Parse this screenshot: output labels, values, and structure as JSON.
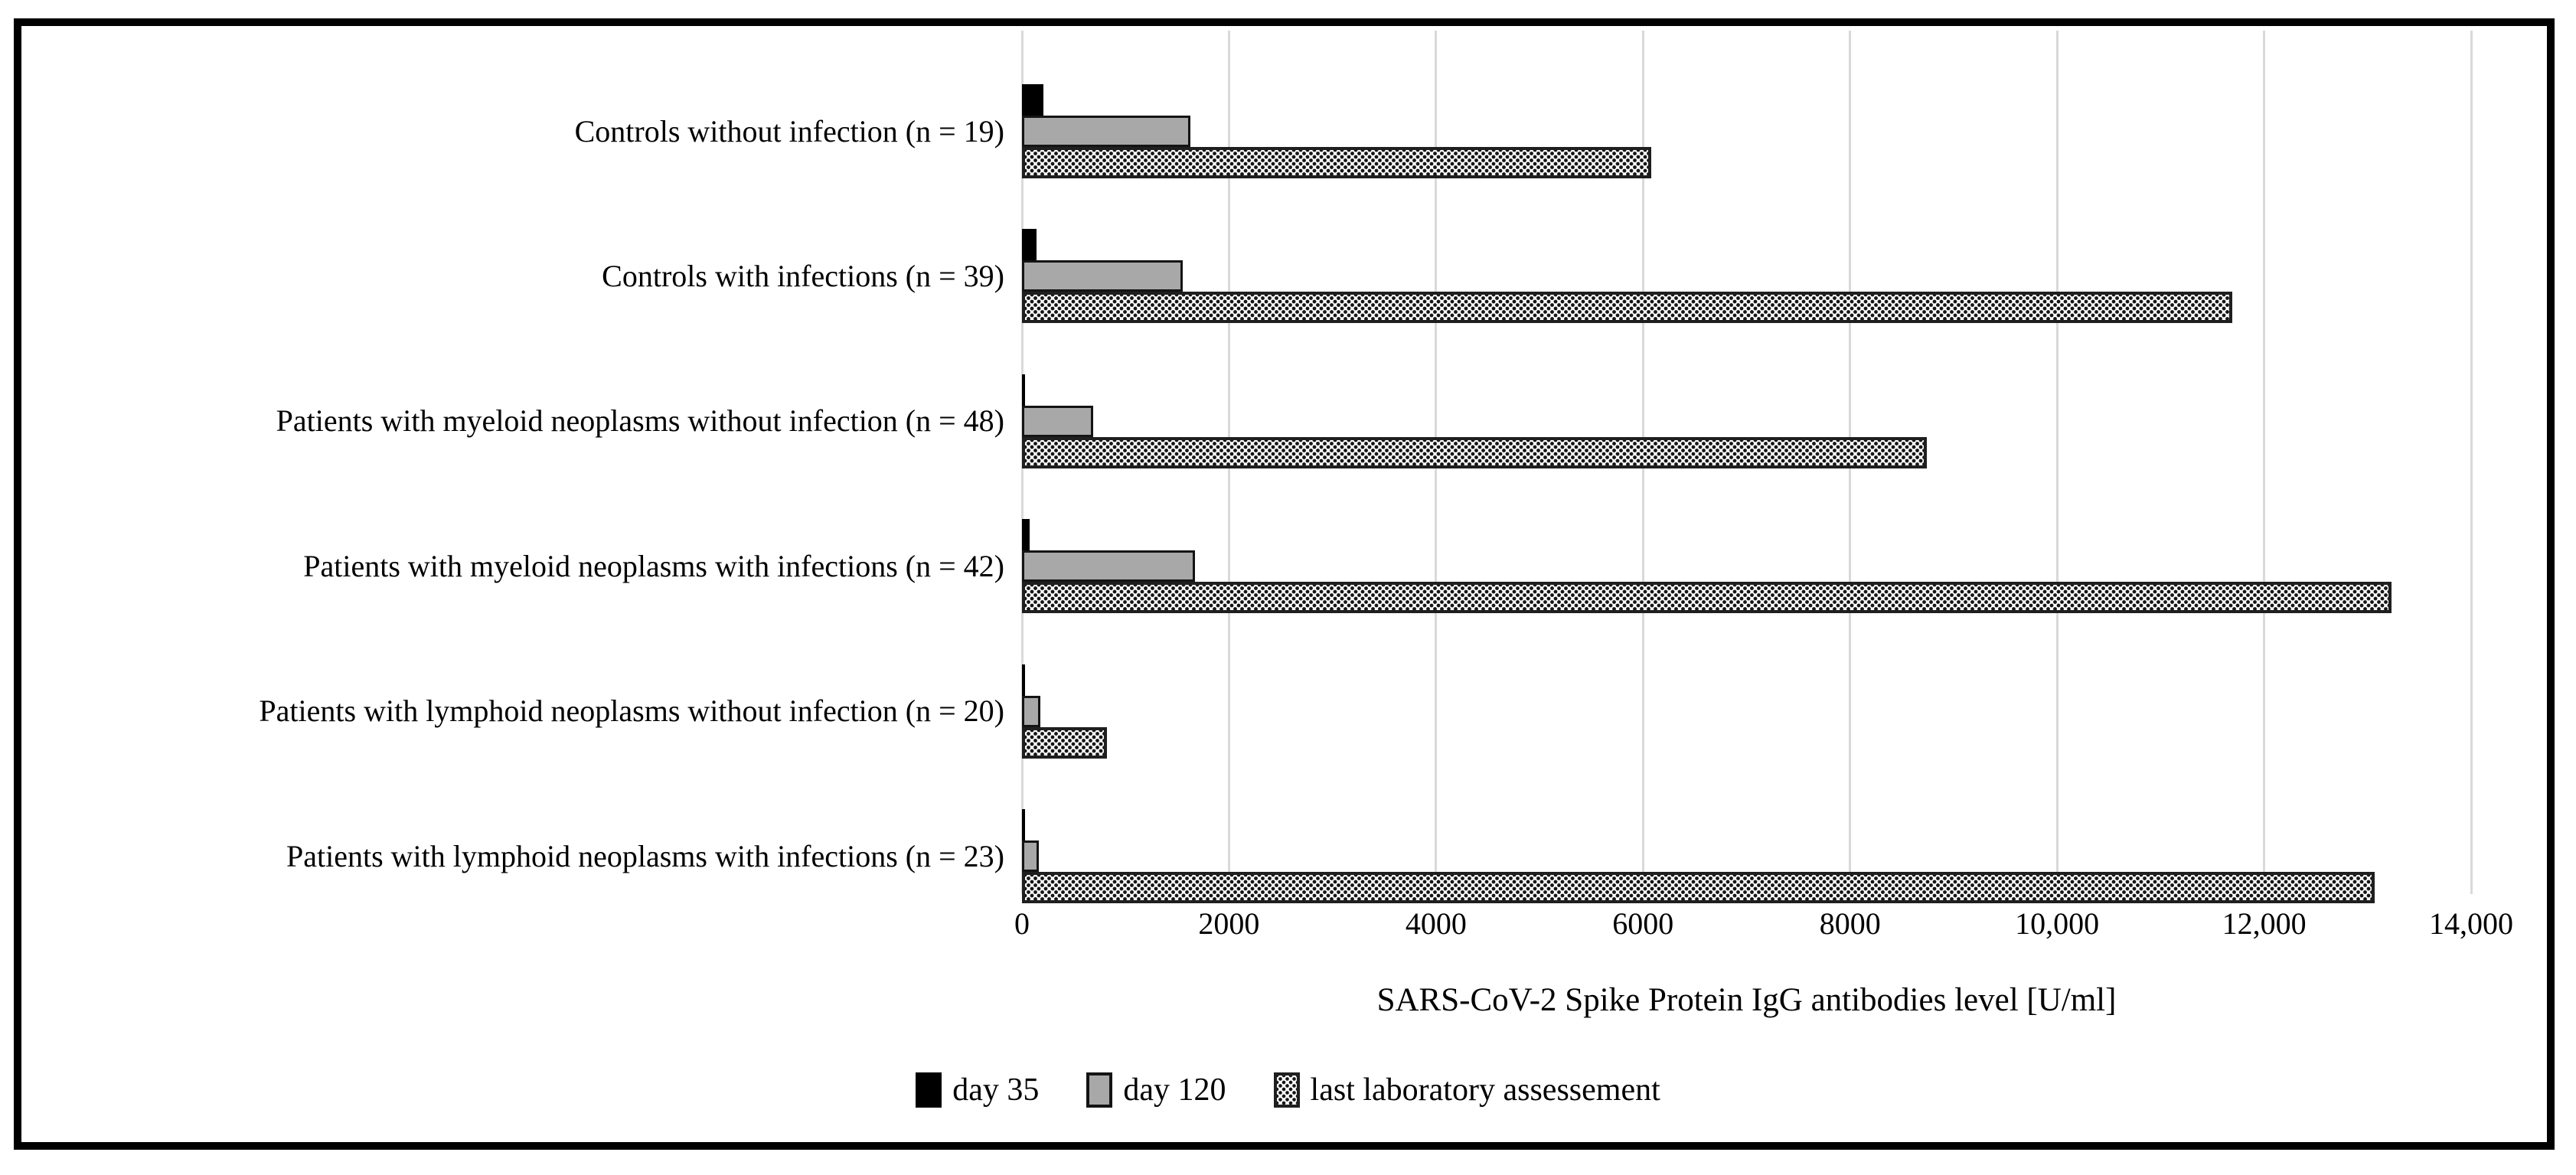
{
  "figure": {
    "background": "#ffffff",
    "border_color": "#000000"
  },
  "chart_data": {
    "type": "bar",
    "orientation": "horizontal",
    "title": "",
    "xlabel": "SARS-CoV-2 Spike Protein IgG antibodies level [U/ml]",
    "ylabel": "",
    "xlim": [
      0,
      14000
    ],
    "grid": "vertical",
    "grid_color": "#d9d9d9",
    "legend_position": "bottom-center",
    "xticks": [
      {
        "value": 0,
        "label": "0"
      },
      {
        "value": 2000,
        "label": "2000"
      },
      {
        "value": 4000,
        "label": "4000"
      },
      {
        "value": 6000,
        "label": "6000"
      },
      {
        "value": 8000,
        "label": "8000"
      },
      {
        "value": 10000,
        "label": "10,000"
      },
      {
        "value": 12000,
        "label": "12,000"
      },
      {
        "value": 14000,
        "label": "14,000"
      }
    ],
    "categories": [
      "Controls without infection (n = 19)",
      "Controls with infections (n = 39)",
      "Patients with myeloid neoplasms without infection (n = 48)",
      "Patients with myeloid neoplasms with infections (n = 42)",
      "Patients with lymphoid neoplasms without infection (n = 20)",
      "Patients with lymphoid neoplasms with infections (n = 23)"
    ],
    "series": [
      {
        "name": "day 35",
        "color": "#000000",
        "pattern": "solid",
        "values": [
          210,
          140,
          20,
          75,
          20,
          20
        ]
      },
      {
        "name": "day 120",
        "color": "#a8a8a8",
        "pattern": "solid",
        "values": [
          1630,
          1550,
          690,
          1670,
          175,
          160
        ]
      },
      {
        "name": "last laboratory assessement",
        "color": "#ffffff",
        "pattern": "dots",
        "values": [
          6080,
          11690,
          8740,
          13230,
          820,
          13070
        ]
      }
    ]
  }
}
